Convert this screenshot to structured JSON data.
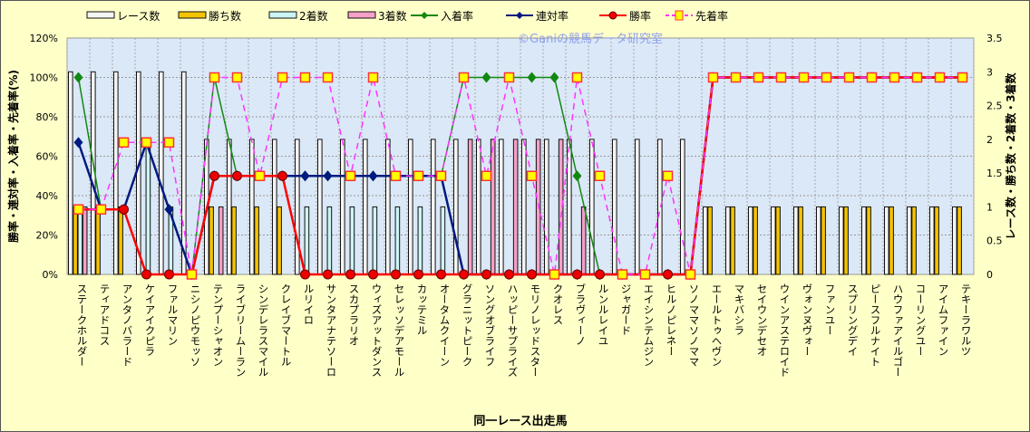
{
  "chart_data": {
    "type": "bar",
    "title": "",
    "watermark": "©Ganiの競馬データ研究室",
    "xlabel": "同一レース出走馬",
    "ylabel": "勝率・連対率・入着率・先着率(%)",
    "y2label": "レース数・勝ち数・2着数・3着数",
    "ylim": [
      0,
      120
    ],
    "y2lim": [
      0,
      3.5
    ],
    "yticks": [
      "0%",
      "20%",
      "40%",
      "60%",
      "80%",
      "100%",
      "120%"
    ],
    "y2ticks": [
      "0",
      "0.5",
      "1",
      "1.5",
      "2",
      "2.5",
      "3",
      "3.5"
    ],
    "legend_position": "top",
    "legend": [
      "レース数",
      "勝ち数",
      "2着数",
      "3着数",
      "入着率",
      "連対率",
      "勝率",
      "先着率"
    ],
    "categories": [
      "ステークホルダー",
      "ティアドコス",
      "アンタノバラード",
      "ケイアイクピラ",
      "ファルマリン",
      "ニシノピウモッソ",
      "テンプーシャオン",
      "ライブリームーラン",
      "シンデレラスマイル",
      "クレイブマートル",
      "ルリイロ",
      "サンタアナテソーロ",
      "スカプラリオ",
      "ウィズアットダンス",
      "セレッソデアモール",
      "カッテミル",
      "オータムクイーン",
      "グラニットピーク",
      "ソングオブライフ",
      "ハッピーサプライズ",
      "モリノレッドスター",
      "クオレス",
      "ブラヴィーノ",
      "ルンルレイユ",
      "ジャガード",
      "エイシンテムジン",
      "ヒルノピレネー",
      "ソノママソノママ",
      "エールトゥヘヴン",
      "マキバシラ",
      "セイウンデセオ",
      "ウインアステロイド",
      "ヴォンヌヴォー",
      "ファンユー",
      "スプリングデイ",
      "ピースフルナイト",
      "ハウファアイルゴー",
      "コーリングユー",
      "アイムファイン",
      "テキーラワルツ"
    ],
    "series": [
      {
        "name": "レース数",
        "axis": "right",
        "kind": "bar",
        "color": "#f4f4f4",
        "values": [
          3,
          3,
          3,
          3,
          3,
          3,
          2,
          2,
          2,
          2,
          2,
          2,
          2,
          2,
          2,
          2,
          2,
          2,
          2,
          2,
          2,
          2,
          2,
          2,
          2,
          2,
          2,
          2,
          1,
          1,
          1,
          1,
          1,
          1,
          1,
          1,
          1,
          1,
          1,
          1
        ]
      },
      {
        "name": "勝ち数",
        "axis": "right",
        "kind": "bar",
        "color": "#f5c400",
        "values": [
          1,
          1,
          1,
          0,
          0,
          0,
          1,
          1,
          1,
          1,
          0,
          0,
          0,
          0,
          0,
          0,
          0,
          0,
          0,
          0,
          0,
          0,
          0,
          0,
          0,
          0,
          0,
          0,
          1,
          1,
          1,
          1,
          1,
          1,
          1,
          1,
          1,
          1,
          1,
          1
        ]
      },
      {
        "name": "2着数",
        "axis": "right",
        "kind": "bar",
        "color": "#ccf5f5",
        "values": [
          1,
          0,
          0,
          2,
          1,
          0,
          0,
          0,
          0,
          0,
          1,
          1,
          1,
          1,
          1,
          1,
          1,
          0,
          0,
          0,
          0,
          0,
          0,
          0,
          0,
          0,
          0,
          0,
          0,
          0,
          0,
          0,
          0,
          0,
          0,
          0,
          0,
          0,
          0,
          0
        ]
      },
      {
        "name": "3着数",
        "axis": "right",
        "kind": "bar",
        "color": "#f4a0c8",
        "values": [
          1,
          0,
          0,
          0,
          0,
          0,
          1,
          0,
          0,
          0,
          0,
          0,
          0,
          0,
          0,
          0,
          0,
          2,
          2,
          2,
          2,
          2,
          1,
          0,
          0,
          0,
          0,
          0,
          0,
          0,
          0,
          0,
          0,
          0,
          0,
          0,
          0,
          0,
          0,
          0
        ]
      },
      {
        "name": "入着率",
        "axis": "left",
        "kind": "line",
        "color": "#118811",
        "values": [
          100,
          33,
          33,
          67,
          33,
          0,
          100,
          50,
          50,
          50,
          50,
          50,
          50,
          50,
          50,
          50,
          50,
          100,
          100,
          100,
          100,
          100,
          50,
          0,
          0,
          0,
          0,
          0,
          100,
          100,
          100,
          100,
          100,
          100,
          100,
          100,
          100,
          100,
          100,
          100
        ]
      },
      {
        "name": "連対率",
        "axis": "left",
        "kind": "line",
        "color": "#001a80",
        "values": [
          67,
          33,
          33,
          67,
          33,
          0,
          50,
          50,
          50,
          50,
          50,
          50,
          50,
          50,
          50,
          50,
          50,
          0,
          0,
          0,
          0,
          0,
          0,
          0,
          0,
          0,
          0,
          0,
          100,
          100,
          100,
          100,
          100,
          100,
          100,
          100,
          100,
          100,
          100,
          100
        ]
      },
      {
        "name": "勝率",
        "axis": "left",
        "kind": "line",
        "color": "#ff0000",
        "values": [
          33,
          33,
          33,
          0,
          0,
          0,
          50,
          50,
          50,
          50,
          0,
          0,
          0,
          0,
          0,
          0,
          0,
          0,
          0,
          0,
          0,
          0,
          0,
          0,
          0,
          0,
          0,
          0,
          100,
          100,
          100,
          100,
          100,
          100,
          100,
          100,
          100,
          100,
          100,
          100
        ]
      },
      {
        "name": "先着率",
        "axis": "left",
        "kind": "line",
        "color": "#ff33ff",
        "values": [
          33,
          33,
          67,
          67,
          67,
          0,
          100,
          100,
          50,
          100,
          100,
          100,
          50,
          100,
          50,
          50,
          50,
          100,
          50,
          100,
          50,
          0,
          100,
          50,
          0,
          0,
          50,
          0,
          100,
          100,
          100,
          100,
          100,
          100,
          100,
          100,
          100,
          100,
          100,
          100
        ]
      }
    ]
  }
}
